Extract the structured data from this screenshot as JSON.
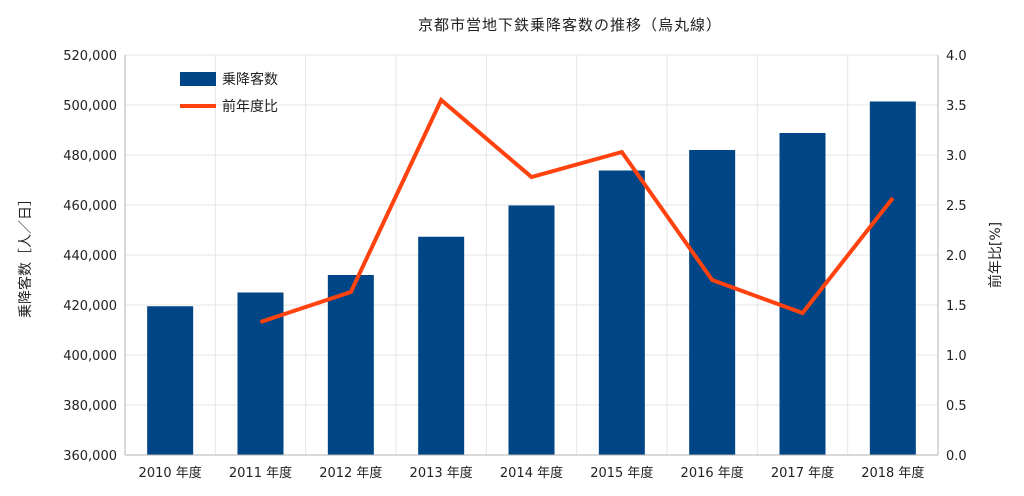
{
  "chart_data": {
    "type": "bar",
    "title": "京都市営地下鉄乗降客数の推移（烏丸線）",
    "categories": [
      "2010 年度",
      "2011 年度",
      "2012 年度",
      "2013 年度",
      "2014 年度",
      "2015 年度",
      "2016 年度",
      "2017 年度",
      "2018 年度"
    ],
    "series": [
      {
        "name": "乗降客数",
        "type": "bar",
        "axis": "left",
        "color": "#004586",
        "values": [
          419500,
          425000,
          432000,
          447300,
          459800,
          473800,
          482000,
          488800,
          501400
        ]
      },
      {
        "name": "前年度比",
        "type": "line",
        "axis": "right",
        "color": "#ff420e",
        "values": [
          null,
          1.33,
          1.63,
          3.55,
          2.78,
          3.03,
          1.75,
          1.42,
          2.57
        ]
      }
    ],
    "ylabel": "乗降客数［人／日］",
    "y2label": "前年比[%]",
    "ylim": [
      360000,
      520000
    ],
    "y2lim": [
      0,
      4.0
    ],
    "yticks": [
      "360,000",
      "380,000",
      "400,000",
      "420,000",
      "440,000",
      "460,000",
      "480,000",
      "500,000",
      "520,000"
    ],
    "y2ticks": [
      "0.0",
      "0.5",
      "1.0",
      "1.5",
      "2.0",
      "2.5",
      "3.0",
      "3.5",
      "4.0"
    ],
    "grid": true,
    "legend_position": "top-left"
  }
}
